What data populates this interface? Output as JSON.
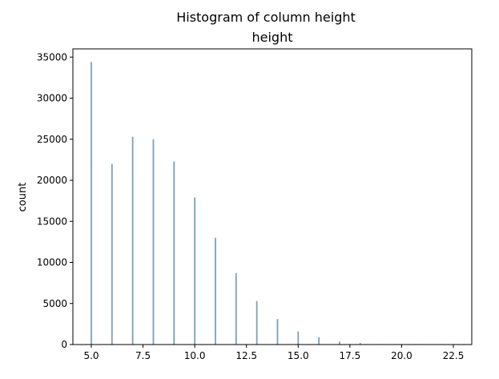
{
  "chart_data": {
    "type": "bar",
    "suptitle": "Histogram of column height",
    "title": "height",
    "xlabel": "",
    "ylabel": "count",
    "xlim": [
      4.11,
      23.39
    ],
    "ylim": [
      0,
      36000
    ],
    "xticks": [
      "5.0",
      "7.5",
      "10.0",
      "12.5",
      "15.0",
      "17.5",
      "20.0",
      "22.5"
    ],
    "xtick_values": [
      5.0,
      7.5,
      10.0,
      12.5,
      15.0,
      17.5,
      20.0,
      22.5
    ],
    "yticks": [
      "0",
      "5000",
      "10000",
      "15000",
      "20000",
      "25000",
      "30000",
      "35000"
    ],
    "ytick_values": [
      0,
      5000,
      10000,
      15000,
      20000,
      25000,
      30000,
      35000
    ],
    "grid": false,
    "bar_color": "#7a9fbf",
    "x": [
      5,
      6,
      7,
      8,
      9,
      10,
      11,
      12,
      13,
      14,
      15,
      16,
      17,
      18,
      19,
      20,
      21,
      22,
      23
    ],
    "values": [
      34400,
      22000,
      25300,
      25000,
      22300,
      17900,
      13000,
      8700,
      5300,
      3100,
      1600,
      900,
      350,
      200,
      60,
      25,
      10,
      5,
      3
    ]
  }
}
